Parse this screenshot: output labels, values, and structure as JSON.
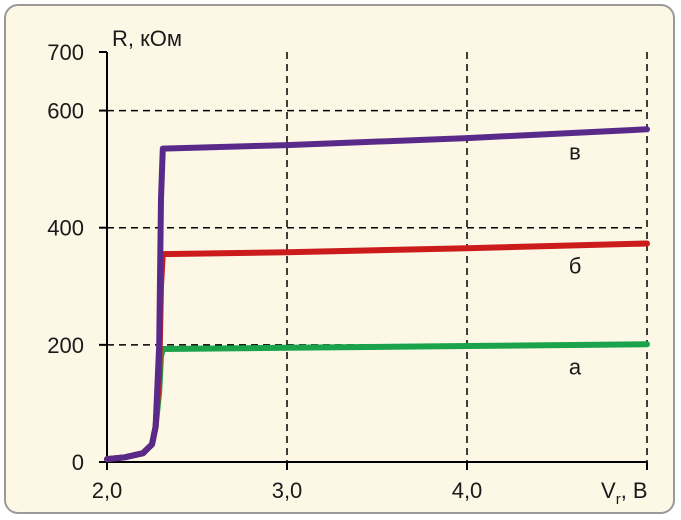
{
  "chart_data": {
    "type": "line",
    "ylabel": "R, кОм",
    "xlabel_main": "V",
    "xlabel_sub": "r",
    "xlabel_unit": ", В",
    "xlim": [
      2.0,
      5.0
    ],
    "ylim": [
      0,
      700
    ],
    "x_ticks": [
      {
        "value": 2.0,
        "label": "2,0"
      },
      {
        "value": 3.0,
        "label": "3,0"
      },
      {
        "value": 4.0,
        "label": "4,0"
      }
    ],
    "y_ticks": [
      {
        "value": 0,
        "label": "0"
      },
      {
        "value": 200,
        "label": "200"
      },
      {
        "value": 400,
        "label": "400"
      },
      {
        "value": 600,
        "label": "600"
      },
      {
        "value": 700,
        "label": "700"
      }
    ],
    "grid": "dashed",
    "series": [
      {
        "name": "а",
        "color": "#1aa34a",
        "x": [
          2.0,
          2.1,
          2.2,
          2.25,
          2.27,
          2.29,
          2.3,
          2.31,
          3.0,
          4.0,
          5.0
        ],
        "y": [
          5,
          8,
          15,
          30,
          60,
          120,
          180,
          193,
          195,
          198,
          201
        ]
      },
      {
        "name": "б",
        "color": "#cc1b1b",
        "x": [
          2.0,
          2.1,
          2.2,
          2.25,
          2.27,
          2.29,
          2.3,
          2.31,
          3.0,
          4.0,
          5.0
        ],
        "y": [
          5,
          8,
          15,
          30,
          60,
          150,
          300,
          355,
          358,
          365,
          373
        ]
      },
      {
        "name": "в",
        "color": "#5a2a8a",
        "x": [
          2.0,
          2.1,
          2.2,
          2.25,
          2.27,
          2.29,
          2.3,
          2.31,
          3.0,
          4.0,
          5.0
        ],
        "y": [
          5,
          8,
          15,
          30,
          60,
          200,
          450,
          535,
          541,
          553,
          568
        ]
      }
    ]
  }
}
